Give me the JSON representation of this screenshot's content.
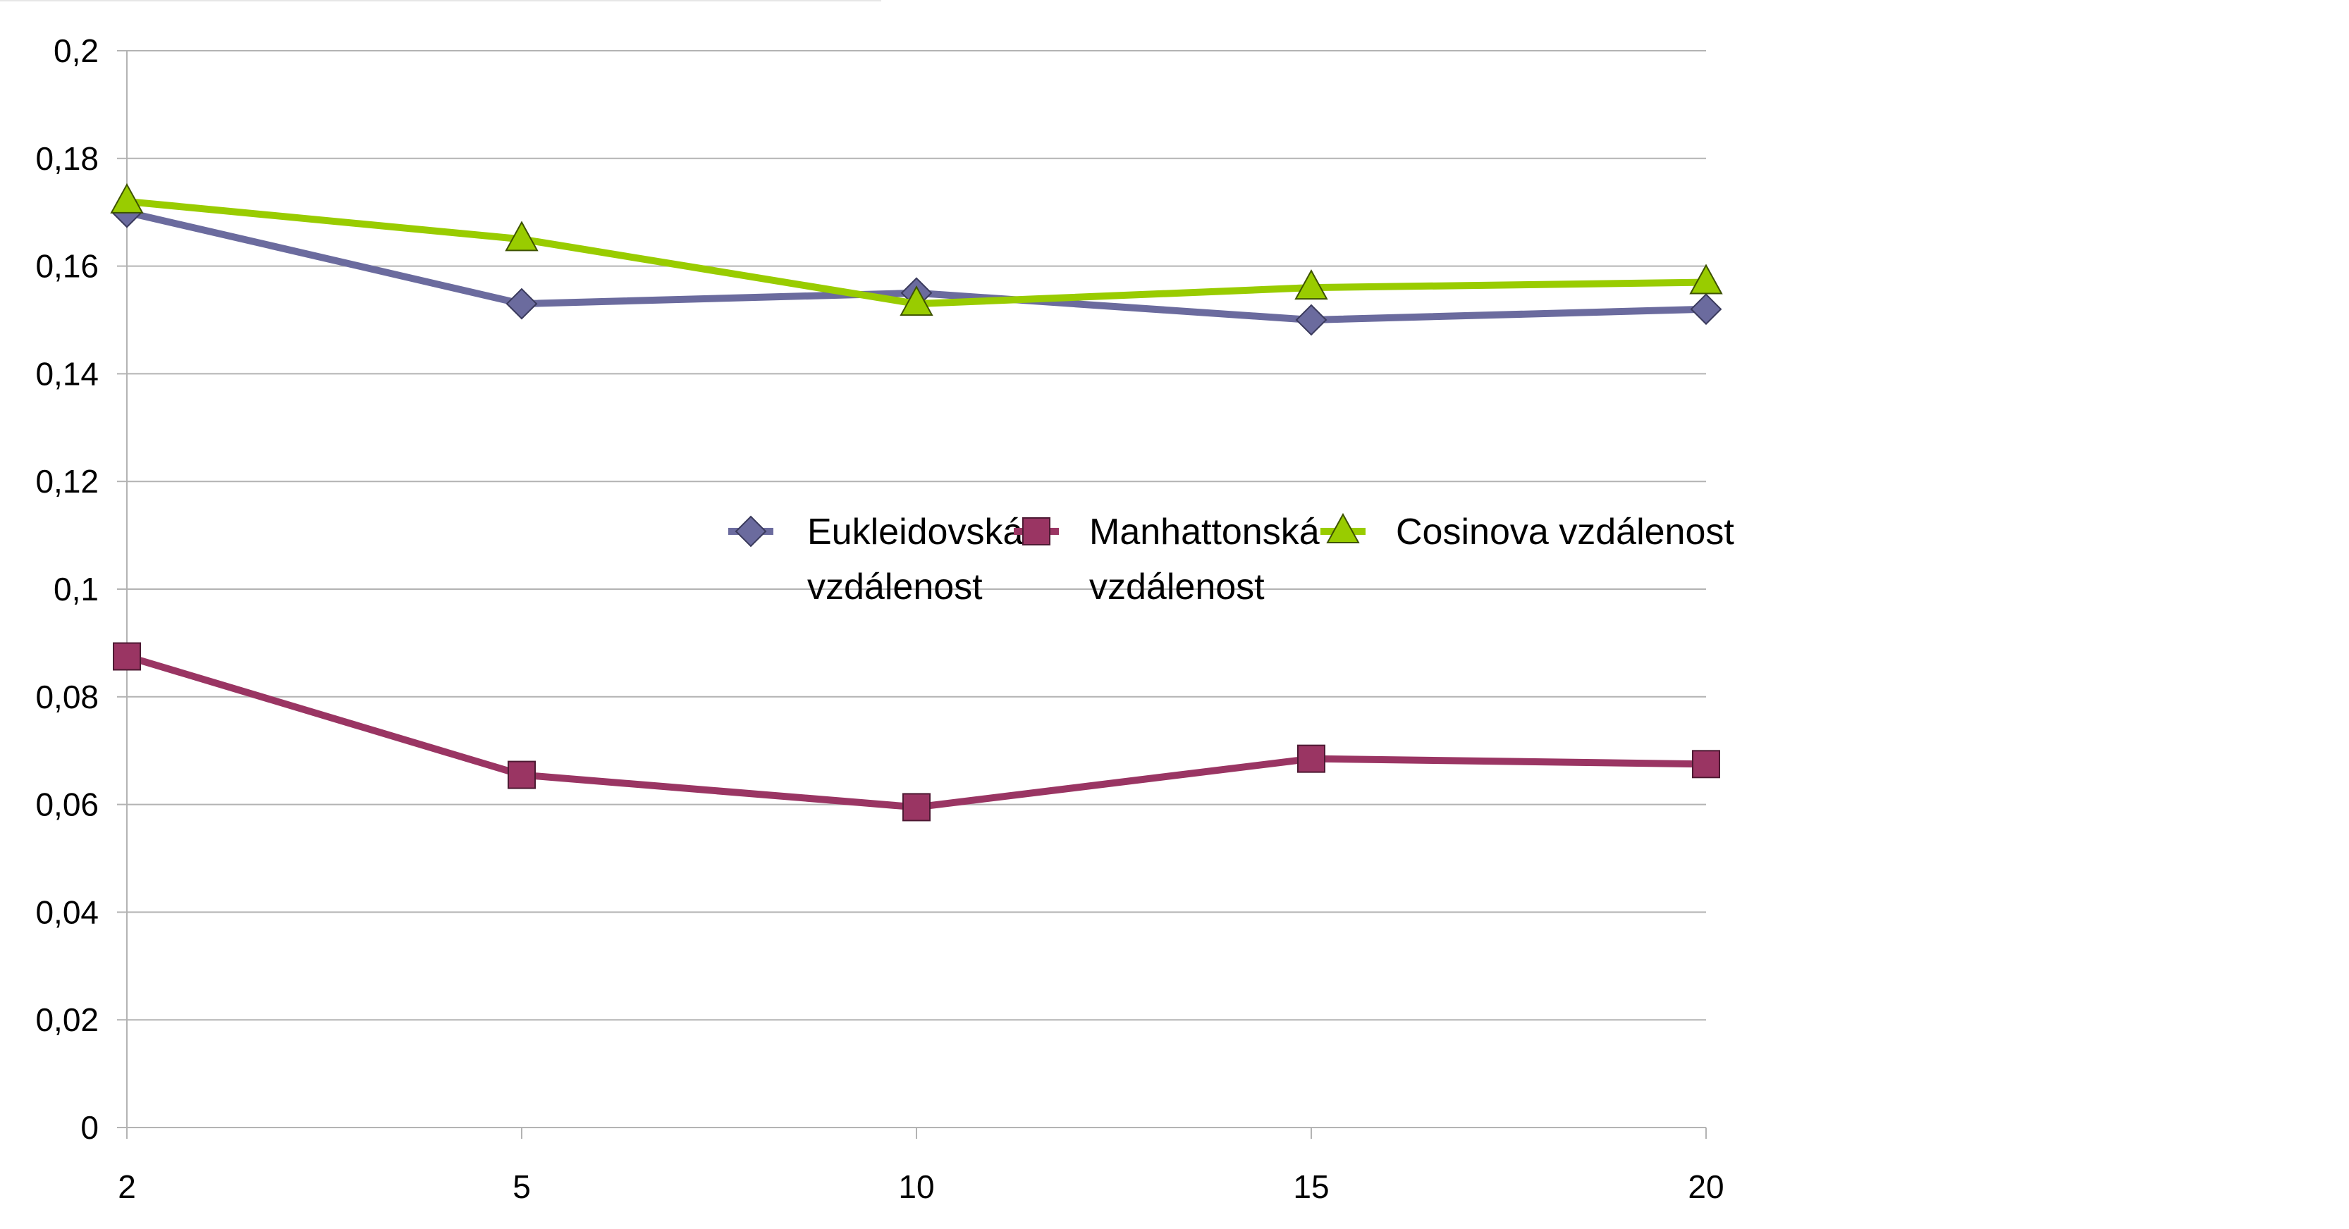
{
  "chart_data": {
    "type": "line",
    "title": "",
    "xlabel": "",
    "ylabel": "",
    "categories": [
      "2",
      "5",
      "10",
      "15",
      "20"
    ],
    "ylim": [
      0,
      0.2
    ],
    "yticks": [
      "0",
      "0,02",
      "0,04",
      "0,06",
      "0,08",
      "0,1",
      "0,12",
      "0,14",
      "0,16",
      "0,18",
      "0,2"
    ],
    "grid": true,
    "legend_position": "center-right",
    "series": [
      {
        "name_lines": [
          "Eukleidovská",
          "vzdálenost"
        ],
        "values": [
          0.17,
          0.153,
          0.155,
          0.15,
          0.152
        ],
        "color": "#6b6b9e",
        "marker": "diamond"
      },
      {
        "name_lines": [
          "Manhattonská",
          "vzdálenost"
        ],
        "values": [
          0.0875,
          0.0655,
          0.0595,
          0.0685,
          0.0675
        ],
        "color": "#9a3563",
        "marker": "square"
      },
      {
        "name_lines": [
          "Cosinova vzdálenost"
        ],
        "values": [
          0.172,
          0.165,
          0.153,
          0.156,
          0.157
        ],
        "color": "#99cc00",
        "marker": "triangle"
      }
    ]
  }
}
